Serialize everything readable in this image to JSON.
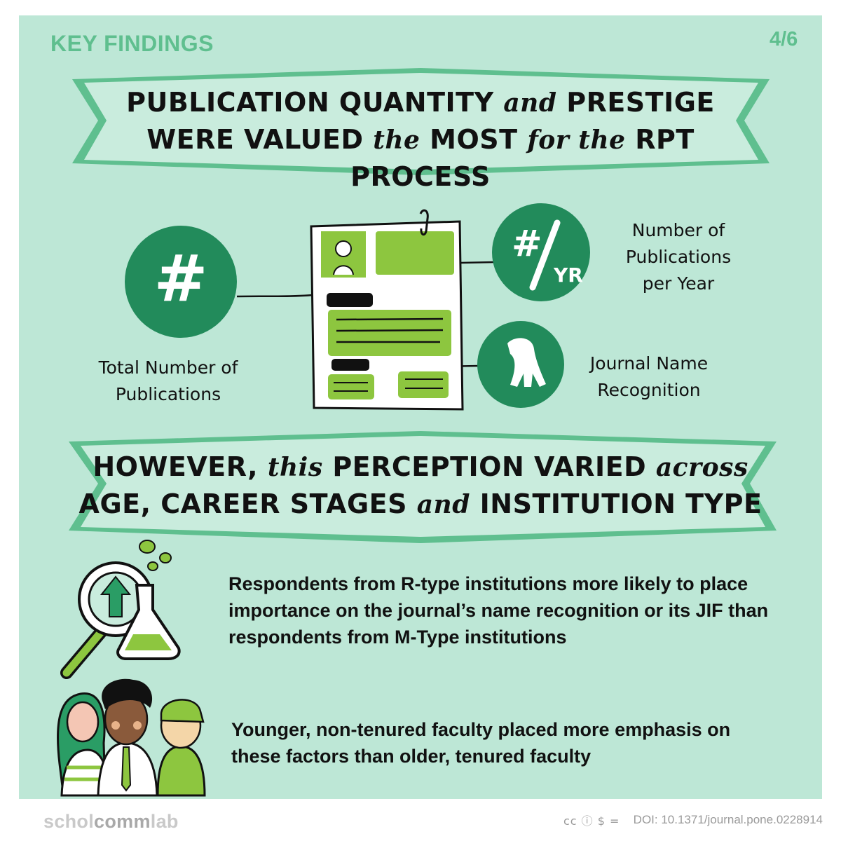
{
  "header": {
    "section": "KEY FINDINGS",
    "page": "4/6"
  },
  "banner1": {
    "line1": [
      "PUBLICATION QUANTITY ",
      "and",
      " PRESTIGE"
    ],
    "line2": [
      "WERE VALUED ",
      "the",
      " MOST ",
      "for the",
      " RPT PROCESS"
    ]
  },
  "labels": {
    "total_pubs": "Total Number of Publications",
    "pubs_per_year": "Number of Publications per Year",
    "journal_name": "Journal Name Recognition",
    "hash_symbol": "#",
    "per_year_symbol": "#/YR"
  },
  "banner2": {
    "line1": [
      "HOWEVER, ",
      "this",
      " PERCEPTION VARIED ",
      "across"
    ],
    "line2": [
      "AGE, CAREER STAGES ",
      "and",
      " INSTITUTION TYPE"
    ]
  },
  "findings": [
    "Respondents from R-type institutions more likely to place importance on the journal’s name recognition or its JIF than respondents from M-Type institutions",
    "Younger, non-tenured faculty placed more emphasis on these factors than older, tenured faculty"
  ],
  "footer": {
    "brand_prefix": "schol",
    "brand_middle": "comm",
    "brand_suffix": "lab",
    "license": "cc ⓘ $ =",
    "doi": "DOI: 10.1371/journal.pone.0228914"
  },
  "colors": {
    "panel": "#bde7d6",
    "banner": "#5fbf8f",
    "dark_green": "#228b5b",
    "lime": "#8dc63f",
    "brand_accent": "#ffd633"
  }
}
